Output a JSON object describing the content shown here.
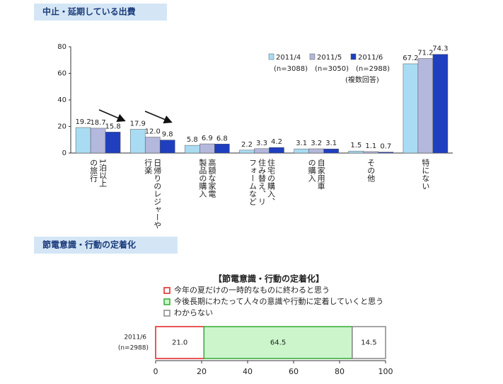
{
  "chart_data": [
    {
      "type": "bar",
      "section_title": "中止・延期している出費",
      "categories": [
        "1泊以上の旅行",
        "日帰りのレジャーや行楽",
        "高額な家電製品の購入",
        "住宅の購入、住み替え、リフォームなど",
        "自家用車の購入",
        "その他",
        "特にない"
      ],
      "series": [
        {
          "name": "2011/4",
          "sample": "(n=3088)",
          "color": "#a9dcf3",
          "values": [
            19.2,
            17.9,
            5.8,
            2.2,
            3.1,
            1.5,
            67.2
          ],
          "value_labels": [
            "19.2",
            "17.9",
            "5.8",
            "2.2",
            "3.1",
            "1.5",
            "67.2"
          ]
        },
        {
          "name": "2011/5",
          "sample": "(n=3050)",
          "color": "#b4b8dc",
          "values": [
            18.7,
            12.0,
            6.9,
            3.3,
            3.2,
            1.1,
            71.2
          ],
          "value_labels": [
            "18.7",
            "12.0",
            "6.9",
            "3.3",
            "3.2",
            "1.1",
            "71.2"
          ]
        },
        {
          "name": "2011/6",
          "sample": "(n=2988)",
          "color": "#1f3fbf",
          "values": [
            15.8,
            9.8,
            6.8,
            4.2,
            3.1,
            0.7,
            74.3
          ],
          "value_labels": [
            "15.8",
            "9.8",
            "6.8",
            "4.2",
            "3.1",
            "0.7",
            "74.3"
          ]
        }
      ],
      "legend_note": "(複数回答)",
      "ylim": [
        0,
        80
      ],
      "yticks": [
        0,
        20,
        40,
        60,
        80
      ]
    },
    {
      "type": "stacked_barh",
      "section_title": "節電意識・行動の定着化",
      "title": "【節電意識・行動の定着化】",
      "categories": [
        "2011/6"
      ],
      "sample": "(n=2988)",
      "series": [
        {
          "name": "今年の夏だけの一時的なものに終わると思う",
          "color": "#ffffff",
          "border": "#e02020",
          "values": [
            21.0
          ],
          "value_labels": [
            "21.0"
          ]
        },
        {
          "name": "今後長期にわたって人々の意識や行動に定着していくと思う",
          "color": "#ccf5cc",
          "border": "#33aa33",
          "values": [
            64.5
          ],
          "value_labels": [
            "64.5"
          ]
        },
        {
          "name": "わからない",
          "color": "#ffffff",
          "border": "#888888",
          "values": [
            14.5
          ],
          "value_labels": [
            "14.5"
          ]
        }
      ],
      "xlim": [
        0,
        100
      ],
      "xticks": [
        0,
        20,
        40,
        60,
        80,
        100
      ]
    }
  ]
}
